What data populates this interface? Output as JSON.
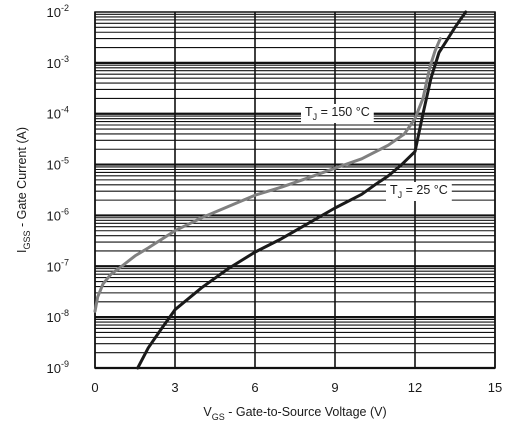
{
  "chart_data": {
    "type": "line",
    "xlabel": {
      "main": "V",
      "sub": "GS",
      "rest": " - Gate-to-Source Voltage (V)"
    },
    "ylabel": {
      "main": "I",
      "sub": "GSS",
      "rest": " - Gate Current (A)"
    },
    "xlim": [
      0,
      15
    ],
    "ylim": [
      1e-09,
      0.01
    ],
    "yscale": "log",
    "xticks": [
      "0",
      "3",
      "6",
      "9",
      "12",
      "15"
    ],
    "yticks": [
      {
        "base": "10",
        "exp": "-9"
      },
      {
        "base": "10",
        "exp": "-8"
      },
      {
        "base": "10",
        "exp": "-7"
      },
      {
        "base": "10",
        "exp": "-6"
      },
      {
        "base": "10",
        "exp": "-5"
      },
      {
        "base": "10",
        "exp": "-4"
      },
      {
        "base": "10",
        "exp": "-3"
      },
      {
        "base": "10",
        "exp": "-2"
      }
    ],
    "grid": true,
    "series": [
      {
        "name_main": "T",
        "name_sub": "J",
        "name_rest": " = 150 °C",
        "color": "#808080",
        "x": [
          0.0,
          0.1,
          0.3,
          0.6,
          1.0,
          1.5,
          2.0,
          3.0,
          4.0,
          5.0,
          6.0,
          7.0,
          8.0,
          9.0,
          10.0,
          11.0,
          11.6,
          12.0,
          12.3,
          12.55,
          12.75,
          12.95
        ],
        "y": [
          1.3e-08,
          2.5e-08,
          4.5e-08,
          7e-08,
          1e-07,
          1.6e-07,
          2.3e-07,
          5e-07,
          9e-07,
          1.5e-06,
          2.5e-06,
          3.6e-06,
          5.5e-06,
          8.5e-06,
          1.3e-05,
          2.4e-05,
          4e-05,
          8e-05,
          0.0002,
          0.0008,
          0.0017,
          0.003
        ]
      },
      {
        "name_main": "T",
        "name_sub": "J",
        "name_rest": " = 25 °C",
        "color": "#1a1a1a",
        "x": [
          1.6,
          2.0,
          2.5,
          3.0,
          4.0,
          5.0,
          6.0,
          7.0,
          8.0,
          9.0,
          10.0,
          10.5,
          11.0,
          11.5,
          12.0,
          12.3,
          12.6,
          12.9,
          13.2,
          13.5,
          13.9
        ],
        "y": [
          1e-09,
          2.5e-09,
          6e-09,
          1.4e-08,
          3.8e-08,
          9e-08,
          1.9e-07,
          3.5e-07,
          7e-07,
          1.4e-06,
          2.6e-06,
          4e-06,
          6e-06,
          1e-05,
          1.8e-05,
          0.0001,
          0.0005,
          0.0016,
          0.0028,
          0.005,
          0.01
        ]
      }
    ]
  }
}
